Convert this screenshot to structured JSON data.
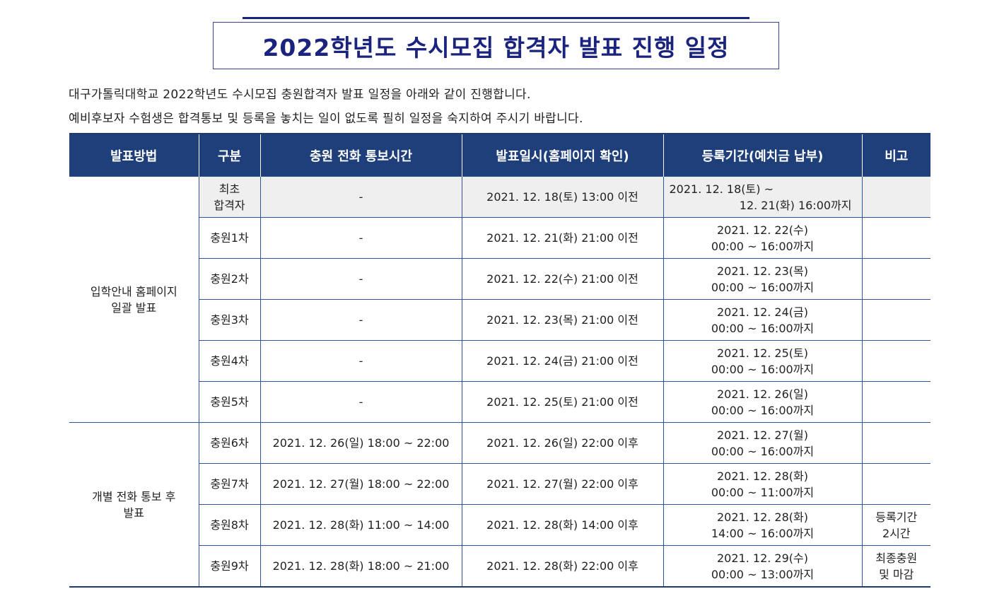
{
  "title": "2022학년도 수시모집 합격자 발표 진행 일정",
  "intro": [
    "대구가톨릭대학교 2022학년도 수시모집 충원합격자 발표 일정을 아래와 같이 진행합니다.",
    "예비후보자 수험생은 합격통보 및 등록을 놓치는 일이 없도록 필히 일정을 숙지하여 주시기 바랍니다."
  ],
  "table": {
    "headers": [
      "발표방법",
      "구분",
      "충원 전화 통보시간",
      "발표일시(홈페이지 확인)",
      "등록기간(예치금 납부)",
      "비고"
    ],
    "groups": [
      {
        "method_line1": "입학안내 홈페이지",
        "method_line2": "일괄 발표"
      },
      {
        "method_line1": "개별 전화 통보 후",
        "method_line2": "발표"
      }
    ],
    "rows": [
      {
        "type_line1": "최초",
        "type_line2": "합격자",
        "call": "-",
        "announce": "2021. 12. 18(토) 13:00 이전",
        "reg_line1": "2021. 12. 18(토) ~",
        "reg_line2": "12. 21(화) 16:00까지",
        "note_line1": "",
        "note_line2": ""
      },
      {
        "type_line1": "충원1차",
        "type_line2": "",
        "call": "-",
        "announce": "2021. 12. 21(화) 21:00 이전",
        "reg_line1": "2021. 12. 22(수)",
        "reg_line2": "00:00 ~ 16:00까지",
        "note_line1": "",
        "note_line2": ""
      },
      {
        "type_line1": "충원2차",
        "type_line2": "",
        "call": "-",
        "announce": "2021. 12. 22(수) 21:00 이전",
        "reg_line1": "2021. 12. 23(목)",
        "reg_line2": "00:00 ~ 16:00까지",
        "note_line1": "",
        "note_line2": ""
      },
      {
        "type_line1": "충원3차",
        "type_line2": "",
        "call": "-",
        "announce": "2021. 12. 23(목) 21:00 이전",
        "reg_line1": "2021. 12. 24(금)",
        "reg_line2": "00:00 ~ 16:00까지",
        "note_line1": "",
        "note_line2": ""
      },
      {
        "type_line1": "충원4차",
        "type_line2": "",
        "call": "-",
        "announce": "2021. 12. 24(금) 21:00 이전",
        "reg_line1": "2021. 12. 25(토)",
        "reg_line2": "00:00 ~ 16:00까지",
        "note_line1": "",
        "note_line2": ""
      },
      {
        "type_line1": "충원5차",
        "type_line2": "",
        "call": "-",
        "announce": "2021. 12. 25(토) 21:00 이전",
        "reg_line1": "2021. 12. 26(일)",
        "reg_line2": "00:00 ~ 16:00까지",
        "note_line1": "",
        "note_line2": ""
      },
      {
        "type_line1": "충원6차",
        "type_line2": "",
        "call": "2021. 12. 26(일) 18:00 ~ 22:00",
        "announce": "2021. 12. 26(일) 22:00 이후",
        "reg_line1": "2021. 12. 27(월)",
        "reg_line2": "00:00 ~ 16:00까지",
        "note_line1": "",
        "note_line2": ""
      },
      {
        "type_line1": "충원7차",
        "type_line2": "",
        "call": "2021. 12. 27(월) 18:00 ~ 22:00",
        "announce": "2021. 12. 27(월) 22:00 이후",
        "reg_line1": "2021. 12. 28(화)",
        "reg_line2": "00:00 ~ 11:00까지",
        "note_line1": "",
        "note_line2": ""
      },
      {
        "type_line1": "충원8차",
        "type_line2": "",
        "call": "2021. 12. 28(화) 11:00 ~ 14:00",
        "announce": "2021. 12. 28(화) 14:00 이후",
        "reg_line1": "2021. 12. 28(화)",
        "reg_line2": "14:00 ~ 16:00까지",
        "note_line1": "등록기간",
        "note_line2": "2시간"
      },
      {
        "type_line1": "충원9차",
        "type_line2": "",
        "call": "2021. 12. 28(화) 18:00 ~ 21:00",
        "announce": "2021. 12. 28(화) 22:00 이후",
        "reg_line1": "2021. 12. 29(수)",
        "reg_line2": "00:00 ~ 13:00까지",
        "note_line1": "최종충원",
        "note_line2": "및 마감"
      }
    ]
  },
  "colors": {
    "title_text": "#1a237e",
    "header_bg": "#1f3f7a",
    "border": "#2f5597",
    "first_row_bg": "#efefef"
  }
}
